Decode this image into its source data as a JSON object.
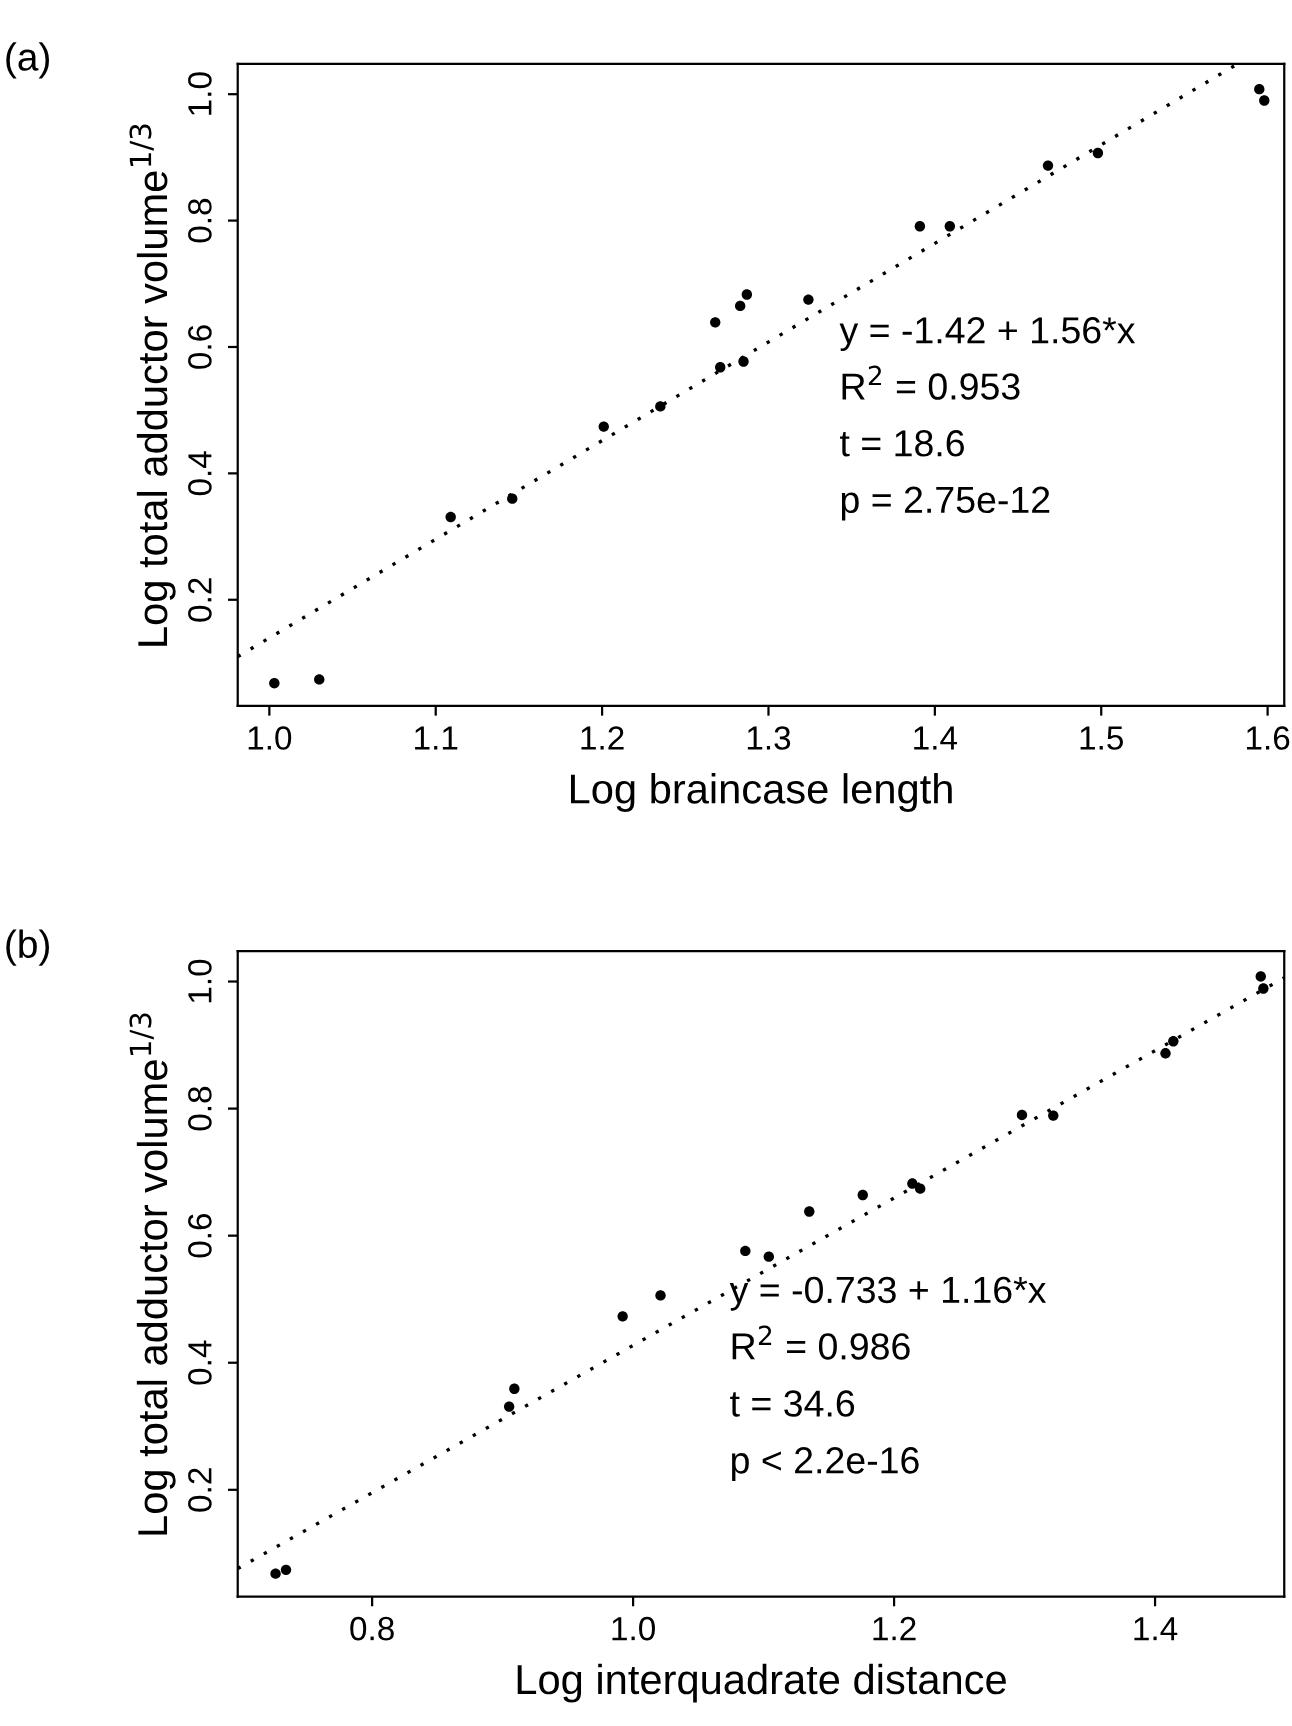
{
  "chart_data": [
    {
      "type": "scatter",
      "title": "(a)",
      "xlabel": "Log braincase length",
      "ylabel": "Log total adductor volume$^{1/3}$",
      "annotations": [
        "y = -1.42 + 1.56*x",
        "R$^{2}$ = 0.953",
        "t = 18.6",
        "p = 2.75e-12"
      ],
      "series": [
        {
          "color": "#000000",
          "marker": "circle",
          "x": [
            1.003,
            1.03,
            1.109,
            1.146,
            1.201,
            1.235,
            1.268,
            1.271,
            1.283,
            1.285,
            1.287,
            1.324,
            1.391,
            1.409,
            1.468,
            1.498,
            1.595,
            1.598
          ],
          "values": [
            0.068,
            0.074,
            0.331,
            0.36,
            0.474,
            0.506,
            0.639,
            0.568,
            0.665,
            0.577,
            0.683,
            0.675,
            0.791,
            0.791,
            0.887,
            0.907,
            1.008,
            0.99
          ]
        },
        {
          "type": "line",
          "color": "#000000",
          "line_style": "dotted",
          "x": [
            0.981,
            1.582
          ],
          "values": [
            0.11,
            1.048
          ]
        }
      ],
      "xlim": [
        0.981,
        1.61
      ],
      "ylim": [
        0.032,
        1.048
      ],
      "xticks": [
        {
          "value": 1,
          "label": "1.0"
        },
        1.1,
        1.2,
        1.3,
        1.4,
        1.5,
        1.6
      ],
      "yticks": [
        0.2,
        0.4,
        0.6,
        0.8,
        {
          "value": 1,
          "label": "1.0"
        }
      ],
      "grid": false,
      "legend": false
    },
    {
      "type": "scatter",
      "title": "(b)",
      "xlabel": "Log interquadrate distance",
      "ylabel": "Log total adductor volume$^{1/3}$",
      "annotations": [
        "y = -0.733 + 1.16*x",
        "R$^{2}$ = 0.986",
        "t = 34.6",
        "p < 2.2e-16"
      ],
      "series": [
        {
          "color": "#000000",
          "marker": "circle",
          "x": [
            0.726,
            0.734,
            0.905,
            0.909,
            0.992,
            1.021,
            1.086,
            1.104,
            1.135,
            1.176,
            1.214,
            1.22,
            1.298,
            1.322,
            1.408,
            1.414,
            1.481,
            1.483
          ],
          "values": [
            0.068,
            0.074,
            0.331,
            0.359,
            0.473,
            0.506,
            0.576,
            0.567,
            0.638,
            0.664,
            0.682,
            0.674,
            0.79,
            0.789,
            0.887,
            0.906,
            1.008,
            0.989
          ]
        },
        {
          "type": "line",
          "color": "#000000",
          "line_style": "dotted",
          "x": [
            0.697,
            1.499
          ],
          "values": [
            0.076,
            1.006
          ]
        }
      ],
      "xlim": [
        0.697,
        1.499
      ],
      "ylim": [
        0.032,
        1.048
      ],
      "xticks": [
        0.8,
        {
          "value": 1,
          "label": "1.0"
        },
        1.2,
        1.4
      ],
      "yticks": [
        0.2,
        0.4,
        0.6,
        0.8,
        {
          "value": 1,
          "label": "1.0"
        }
      ],
      "grid": false,
      "legend": false
    }
  ]
}
